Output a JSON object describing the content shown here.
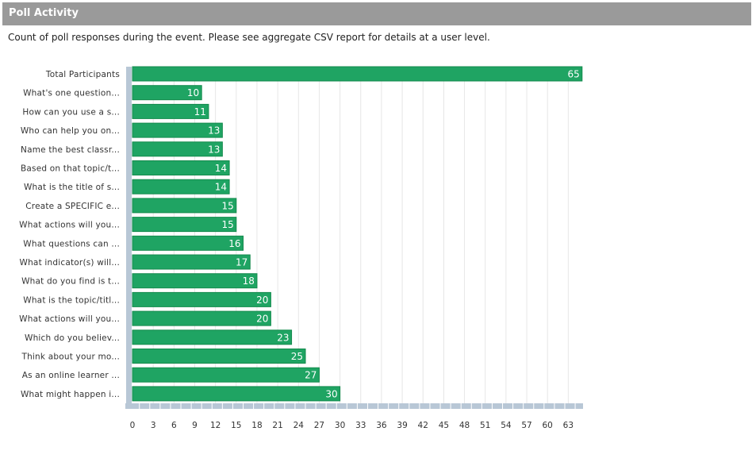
{
  "panel": {
    "title": "Poll Activity",
    "description": "Count of poll responses during the event. Please see aggregate CSV report for details at a user level."
  },
  "chart_data": {
    "type": "bar",
    "orientation": "horizontal",
    "categories": [
      "Total Participants",
      "What's one question...",
      "How can you use a s...",
      "Who can help you on...",
      "Name the best classr...",
      "Based on that topic/t...",
      "What is the title of s...",
      "Create a SPECIFIC e...",
      "What actions will you...",
      "What questions can ...",
      "What indicator(s) will...",
      "What do you find is t...",
      "What is the topic/titl...",
      "What actions will you...",
      "Which do you believ...",
      "Think about your mo...",
      "As an online learner ...",
      "What might happen i..."
    ],
    "values": [
      65,
      10,
      11,
      13,
      13,
      14,
      14,
      15,
      15,
      16,
      17,
      18,
      20,
      20,
      23,
      25,
      27,
      30
    ],
    "xticks": [
      0,
      3,
      6,
      9,
      12,
      15,
      18,
      21,
      24,
      27,
      30,
      33,
      36,
      39,
      42,
      45,
      48,
      51,
      54,
      57,
      60,
      63
    ],
    "xlim": [
      0,
      65
    ],
    "grid": true,
    "bar_color": "#1fa463",
    "bar_border_color": "#138a4c",
    "axis_color": "#b8c7d6",
    "grid_color": "#e6e6e6"
  }
}
